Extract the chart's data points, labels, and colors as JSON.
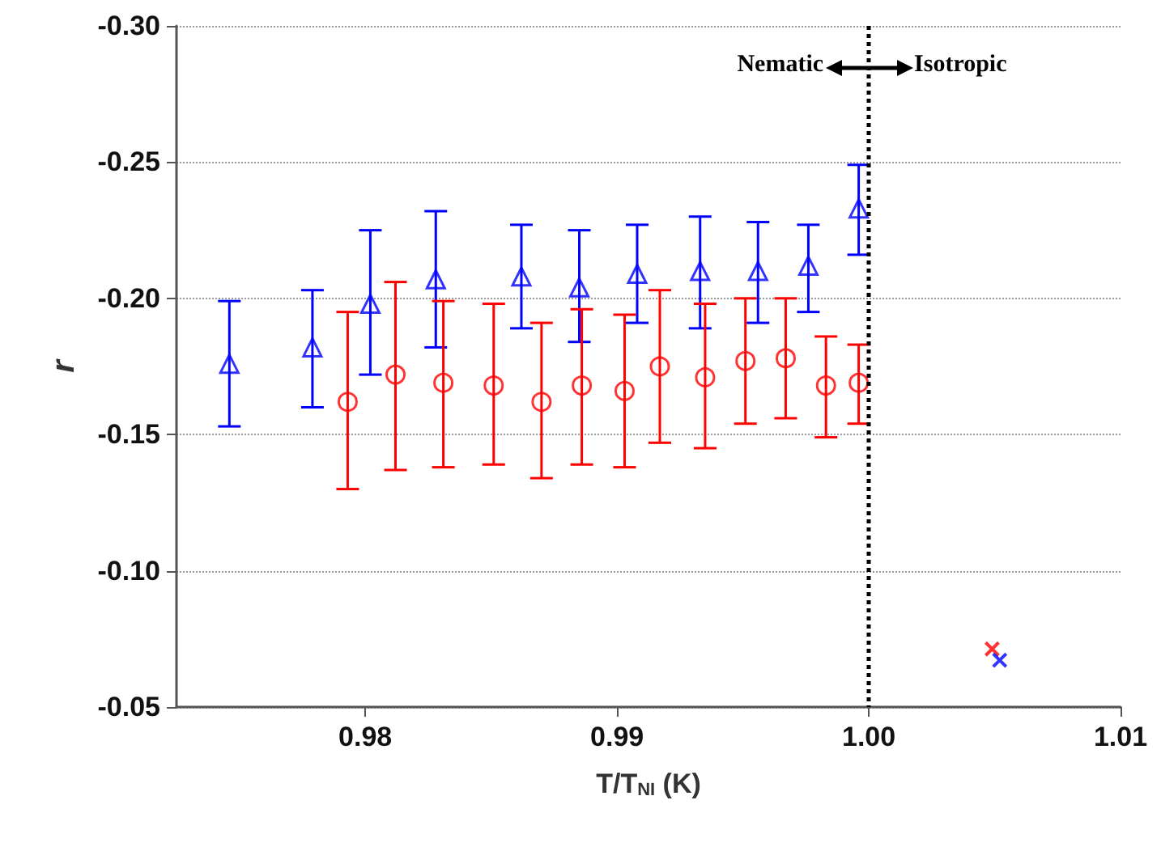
{
  "chart_data": {
    "type": "scatter",
    "xlabel": "T/T$_{NI}$ (K)",
    "ylabel": "r",
    "xlim": [
      0.9725,
      1.01
    ],
    "xticks": [
      {
        "value": 0.98,
        "label": "0.98"
      },
      {
        "value": 0.99,
        "label": "0.99"
      },
      {
        "value": 1.0,
        "label": "1.00"
      },
      {
        "value": 1.01,
        "label": "1.01"
      }
    ],
    "ylim": [
      -0.05,
      -0.3
    ],
    "yticks": [
      {
        "value": -0.3,
        "label": "-0.30"
      },
      {
        "value": -0.25,
        "label": "-0.25"
      },
      {
        "value": -0.2,
        "label": "-0.20"
      },
      {
        "value": -0.15,
        "label": "-0.15"
      },
      {
        "value": -0.1,
        "label": "-0.10"
      },
      {
        "value": -0.05,
        "label": "-0.05"
      }
    ],
    "grid": "y",
    "ref_lines": [
      {
        "axis": "x",
        "value": 1.0,
        "color": "#000000",
        "line_style": "dotted"
      }
    ],
    "annotations": [
      "Nematic",
      "Isotropic"
    ],
    "series": [
      {
        "color": "#0000ff",
        "marker": "triangle",
        "x": [
          0.9746,
          0.9779,
          0.9802,
          0.9828,
          0.9862,
          0.9885,
          0.9908,
          0.9933,
          0.9956,
          0.9976,
          0.9996
        ],
        "values": [
          -0.176,
          -0.182,
          -0.198,
          -0.207,
          -0.208,
          -0.204,
          -0.209,
          -0.21,
          -0.21,
          -0.212,
          -0.233
        ],
        "errors": [
          0.023,
          [
            -0.203,
            -0.16
          ],
          [
            -0.225,
            -0.172
          ],
          0.025,
          0.019,
          [
            -0.225,
            -0.184
          ],
          0.018,
          [
            -0.23,
            -0.189
          ],
          [
            -0.228,
            -0.191
          ],
          [
            -0.227,
            -0.195
          ],
          [
            -0.249,
            -0.216
          ]
        ]
      },
      {
        "color": "#ff0000",
        "marker": "circle",
        "x": [
          0.9793,
          0.9812,
          0.9831,
          0.9851,
          0.987,
          0.9886,
          0.9903,
          0.9917,
          0.9935,
          0.9951,
          0.9967,
          0.9983,
          0.9996
        ],
        "values": [
          -0.162,
          -0.172,
          -0.169,
          -0.168,
          -0.162,
          -0.168,
          -0.166,
          -0.175,
          -0.171,
          -0.177,
          -0.178,
          -0.168,
          -0.169
        ],
        "errors": [
          [
            -0.195,
            -0.13
          ],
          [
            -0.206,
            -0.137
          ],
          [
            -0.199,
            -0.138
          ],
          [
            -0.198,
            -0.139
          ],
          [
            -0.191,
            -0.134
          ],
          [
            -0.196,
            -0.139
          ],
          0.028,
          0.028,
          [
            -0.198,
            -0.145
          ],
          0.023,
          0.022,
          [
            -0.186,
            -0.149
          ],
          [
            -0.183,
            -0.154
          ]
        ]
      },
      {
        "color": "#ff0000",
        "marker": "cross",
        "x": [
          1.0049
        ],
        "values": [
          -0.0713
        ]
      },
      {
        "color": "#0000ff",
        "marker": "cross",
        "x": [
          1.0052
        ],
        "values": [
          -0.0672
        ]
      }
    ]
  }
}
